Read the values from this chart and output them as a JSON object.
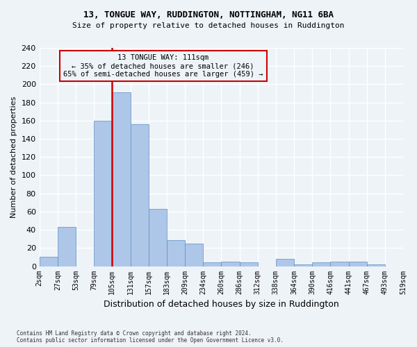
{
  "title1": "13, TONGUE WAY, RUDDINGTON, NOTTINGHAM, NG11 6BA",
  "title2": "Size of property relative to detached houses in Ruddington",
  "xlabel": "Distribution of detached houses by size in Ruddington",
  "ylabel": "Number of detached properties",
  "footnote": "Contains HM Land Registry data © Crown copyright and database right 2024.\nContains public sector information licensed under the Open Government Licence v3.0.",
  "bin_labels": [
    "2sqm",
    "27sqm",
    "53sqm",
    "79sqm",
    "105sqm",
    "131sqm",
    "157sqm",
    "183sqm",
    "209sqm",
    "234sqm",
    "260sqm",
    "286sqm",
    "312sqm",
    "338sqm",
    "364sqm",
    "390sqm",
    "416sqm",
    "441sqm",
    "467sqm",
    "493sqm",
    "519sqm"
  ],
  "bar_values": [
    10,
    43,
    0,
    160,
    191,
    156,
    63,
    29,
    25,
    4,
    5,
    4,
    0,
    8,
    2,
    4,
    5,
    5,
    2,
    0
  ],
  "bar_color": "#aec6e8",
  "bar_edge_color": "#5a8fc2",
  "property_label": "13 TONGUE WAY: 111sqm",
  "annotation_line1": "← 35% of detached houses are smaller (246)",
  "annotation_line2": "65% of semi-detached houses are larger (459) →",
  "vline_color": "#cc0000",
  "vline_x": 4.0,
  "ylim": [
    0,
    240
  ],
  "yticks": [
    0,
    20,
    40,
    60,
    80,
    100,
    120,
    140,
    160,
    180,
    200,
    220,
    240
  ],
  "bg_color": "#eef3f8",
  "grid_color": "#ffffff",
  "annotation_box_color": "#cc0000"
}
